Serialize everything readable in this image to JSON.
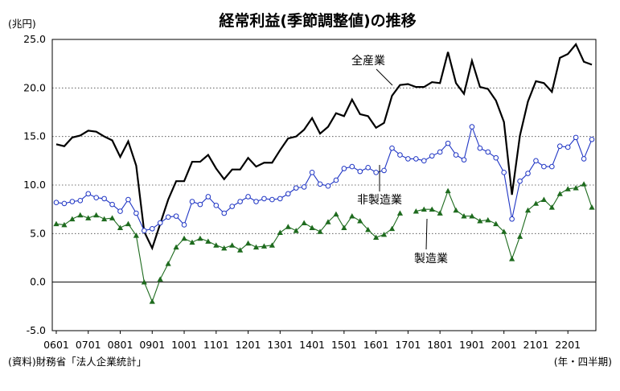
{
  "chart_data": {
    "type": "line",
    "title": "経常利益(季節調整値)の推移",
    "y_unit": "(兆円)",
    "x_unit": "(年・四半期)",
    "source": "(資料)財務省「法人企業統計」",
    "ylim": [
      -5,
      25
    ],
    "y_ticks": [
      "-5.0",
      "0.0",
      "5.0",
      "10.0",
      "15.0",
      "20.0",
      "25.0"
    ],
    "x_tick_labels": [
      "0601",
      "0701",
      "0801",
      "0901",
      "1001",
      "1101",
      "1201",
      "1301",
      "1401",
      "1501",
      "1601",
      "1701",
      "1801",
      "1901",
      "2001",
      "2101",
      "2201"
    ],
    "x_start": "2006Q1",
    "grid": "horizontal dotted",
    "annotations": [
      {
        "text": "全産業",
        "series": "全産業"
      },
      {
        "text": "非製造業",
        "series": "非製造業"
      },
      {
        "text": "製造業",
        "series": "製造業"
      }
    ],
    "series": [
      {
        "name": "全産業",
        "color": "#000000",
        "marker": "none",
        "values": [
          14.2,
          14.0,
          14.9,
          15.1,
          15.6,
          15.5,
          15.0,
          14.6,
          12.9,
          14.5,
          12.0,
          5.2,
          3.5,
          6.0,
          8.5,
          10.4,
          10.4,
          12.4,
          12.4,
          13.1,
          11.7,
          10.6,
          11.6,
          11.6,
          12.8,
          11.9,
          12.3,
          12.3,
          13.6,
          14.8,
          15.0,
          15.7,
          16.9,
          15.3,
          16.0,
          17.4,
          17.1,
          18.8,
          17.3,
          17.1,
          15.9,
          16.4,
          19.2,
          20.3,
          20.4,
          20.1,
          20.1,
          20.6,
          20.5,
          23.7,
          20.5,
          19.4,
          22.8,
          20.1,
          19.9,
          18.7,
          16.5,
          9.0,
          15.1,
          18.6,
          20.7,
          20.5,
          19.6,
          23.1,
          23.5,
          24.5,
          22.7,
          22.4
        ]
      },
      {
        "name": "非製造業",
        "color": "#1f35c4",
        "marker": "open-circle",
        "values": [
          8.2,
          8.1,
          8.3,
          8.4,
          9.1,
          8.7,
          8.6,
          8.0,
          7.3,
          8.5,
          7.1,
          5.3,
          5.5,
          6.1,
          6.7,
          6.8,
          5.9,
          8.3,
          8.0,
          8.8,
          7.9,
          7.1,
          7.8,
          8.3,
          8.8,
          8.3,
          8.6,
          8.5,
          8.6,
          9.1,
          9.7,
          9.8,
          11.3,
          10.1,
          9.9,
          10.5,
          11.7,
          11.9,
          11.4,
          11.8,
          11.3,
          11.5,
          13.8,
          13.1,
          12.7,
          12.7,
          12.5,
          13.0,
          13.4,
          14.3,
          13.1,
          12.6,
          16.0,
          13.8,
          13.4,
          12.8,
          11.3,
          6.5,
          10.4,
          11.2,
          12.5,
          11.9,
          11.9,
          14.0,
          13.9,
          14.9,
          12.7,
          14.7
        ]
      },
      {
        "name": "製造業",
        "color": "#1e6b1e",
        "marker": "filled-triangle",
        "values": [
          6.0,
          5.9,
          6.5,
          6.9,
          6.6,
          6.9,
          6.5,
          6.6,
          5.6,
          6.0,
          4.8,
          0.0,
          -2.0,
          0.3,
          1.9,
          3.6,
          4.5,
          4.1,
          4.5,
          4.2,
          3.8,
          3.5,
          3.8,
          3.3,
          4.0,
          3.6,
          3.7,
          3.8,
          5.1,
          5.7,
          5.3,
          6.1,
          5.6,
          5.2,
          6.2,
          7.0,
          5.6,
          6.8,
          6.3,
          5.4,
          4.6,
          4.9,
          5.5,
          7.1,
          null,
          7.3,
          7.5,
          7.5,
          7.1,
          9.4,
          7.4,
          6.8,
          6.8,
          6.3,
          6.4,
          6.0,
          5.2,
          2.4,
          4.7,
          7.4,
          8.1,
          8.5,
          7.7,
          9.1,
          9.6,
          9.7,
          10.1,
          7.7
        ]
      }
    ]
  }
}
